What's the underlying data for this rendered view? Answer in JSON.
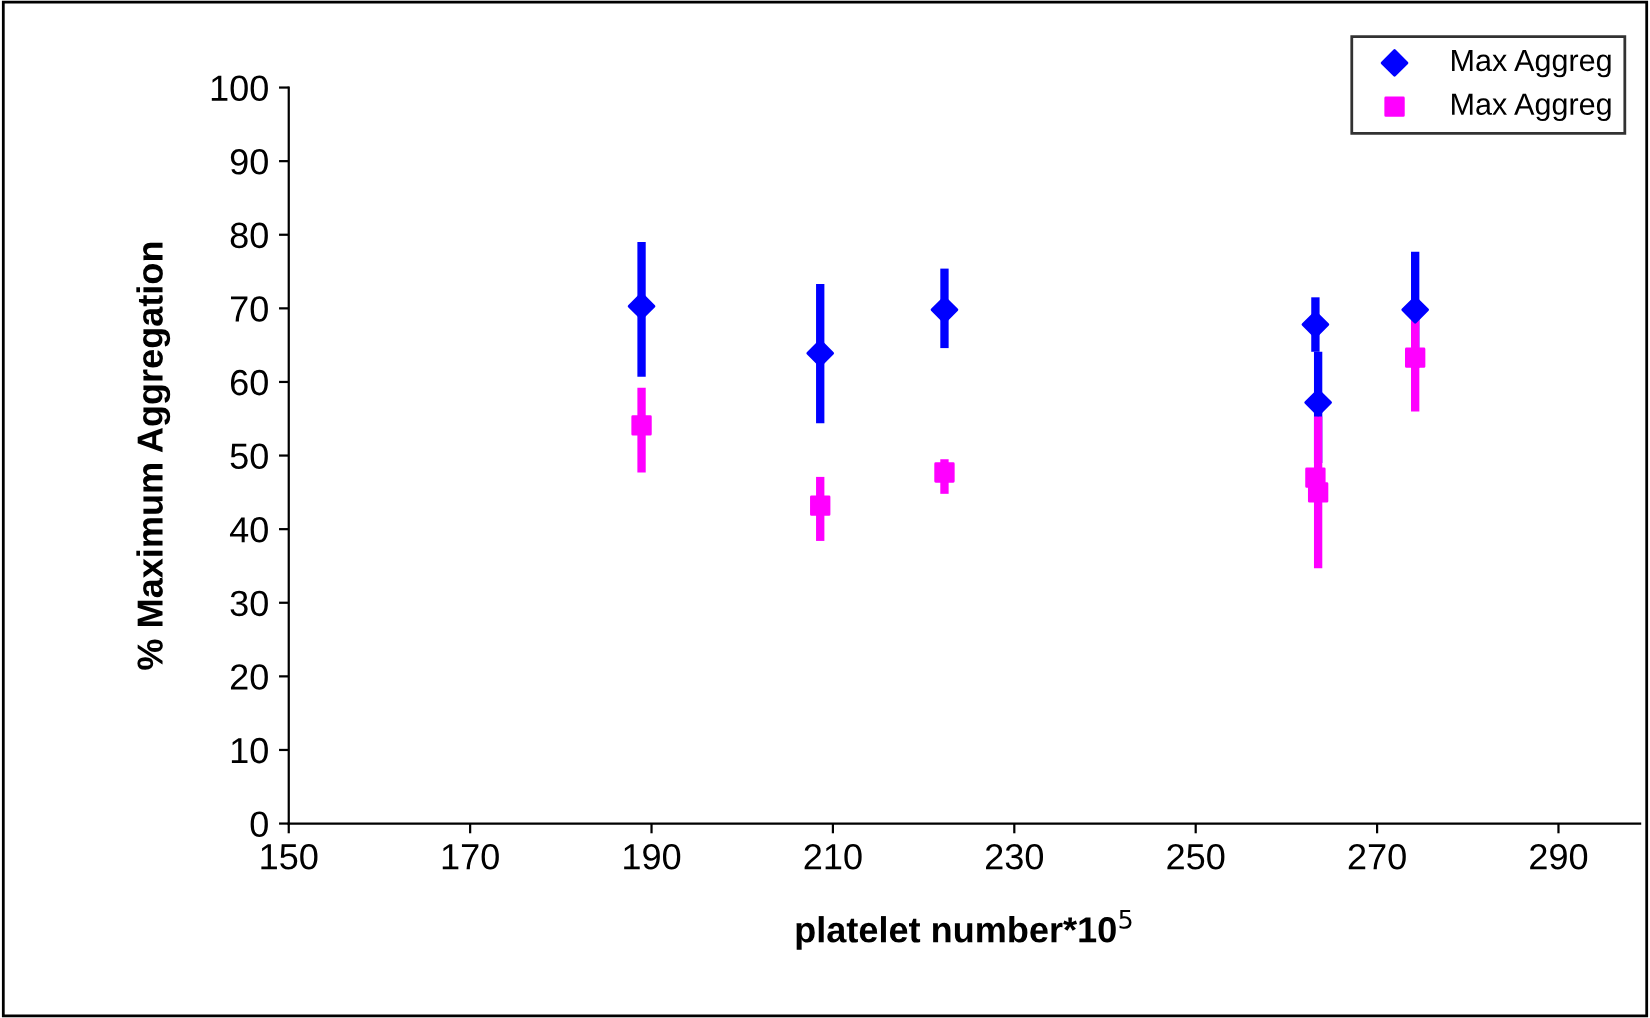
{
  "chart_data": {
    "type": "scatter",
    "xlabel": "platelet number*10$^{5}$",
    "ylabel": "% Maximum Aggregation",
    "series": [
      {
        "name": "Max Aggreg",
        "color": "#0000ff",
        "x": [
          188.9,
          208.6,
          222.3,
          263.2,
          263.5,
          274.2
        ],
        "values": [
          70.3,
          63.9,
          69.8,
          67.8,
          57.2,
          69.8
        ],
        "errors": [
          [
            60.7,
            79.0
          ],
          [
            54.4,
            73.3
          ],
          [
            64.6,
            75.4
          ],
          [
            64.1,
            71.5
          ],
          [
            49.0,
            64.1
          ],
          [
            61.9,
            77.7
          ]
        ],
        "marker": "diamond"
      },
      {
        "name": "Max Aggreg",
        "color": "#ff00ff",
        "x": [
          188.9,
          208.6,
          222.3,
          263.2,
          263.5,
          274.2
        ],
        "values": [
          54.1,
          43.2,
          47.7,
          47.0,
          45.0,
          63.3
        ],
        "errors": [
          [
            47.7,
            59.2
          ],
          [
            38.4,
            47.1
          ],
          [
            44.8,
            49.5
          ],
          null,
          [
            34.7,
            55.3
          ],
          [
            56.0,
            70.6
          ]
        ],
        "marker": "square"
      }
    ],
    "xlim": [
      150,
      299
    ],
    "xticks": [
      150,
      170,
      190,
      210,
      230,
      250,
      270,
      290
    ],
    "ylim": [
      0,
      100
    ],
    "yticks": [
      0,
      10,
      20,
      30,
      40,
      50,
      60,
      70,
      80,
      90,
      100
    ],
    "grid": false,
    "legend": "top right"
  }
}
